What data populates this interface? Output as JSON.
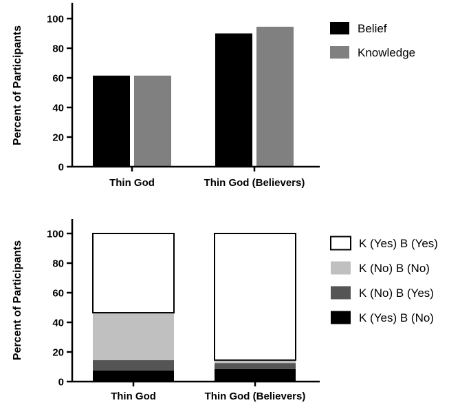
{
  "chart_data": [
    {
      "type": "bar",
      "categories": [
        "Thin God",
        "Thin God (Believers)"
      ],
      "series": [
        {
          "name": "Belief",
          "values": [
            61.5,
            90
          ],
          "color": "#000000"
        },
        {
          "name": "Knowledge",
          "values": [
            61.5,
            94.5
          ],
          "color": "#808080"
        }
      ],
      "ylabel": "Percent of Participants",
      "ylim": [
        0,
        100
      ],
      "yticks": [
        0,
        20,
        40,
        60,
        80,
        100
      ],
      "grid": false,
      "legend_position": "right"
    },
    {
      "type": "bar",
      "stacked": true,
      "categories": [
        "Thin God",
        "Thin God (Believers)"
      ],
      "series": [
        {
          "name": "K (Yes) B (No)",
          "values": [
            7.5,
            8.5
          ],
          "color": "#000000"
        },
        {
          "name": "K (No) B (Yes)",
          "values": [
            7,
            4
          ],
          "color": "#555555"
        },
        {
          "name": "K (No) B (No)",
          "values": [
            32,
            2
          ],
          "color": "#c0c0c0"
        },
        {
          "name": "K (Yes) B (Yes)",
          "values": [
            53.5,
            85.5
          ],
          "color": "#ffffff"
        }
      ],
      "legend_order": [
        "K (Yes) B (Yes)",
        "K (No) B (No)",
        "K (No) B (Yes)",
        "K (Yes) B (No)"
      ],
      "ylabel": "Percent of Participants",
      "ylim": [
        0,
        100
      ],
      "yticks": [
        0,
        20,
        40,
        60,
        80,
        100
      ],
      "grid": false,
      "legend_position": "right"
    }
  ]
}
